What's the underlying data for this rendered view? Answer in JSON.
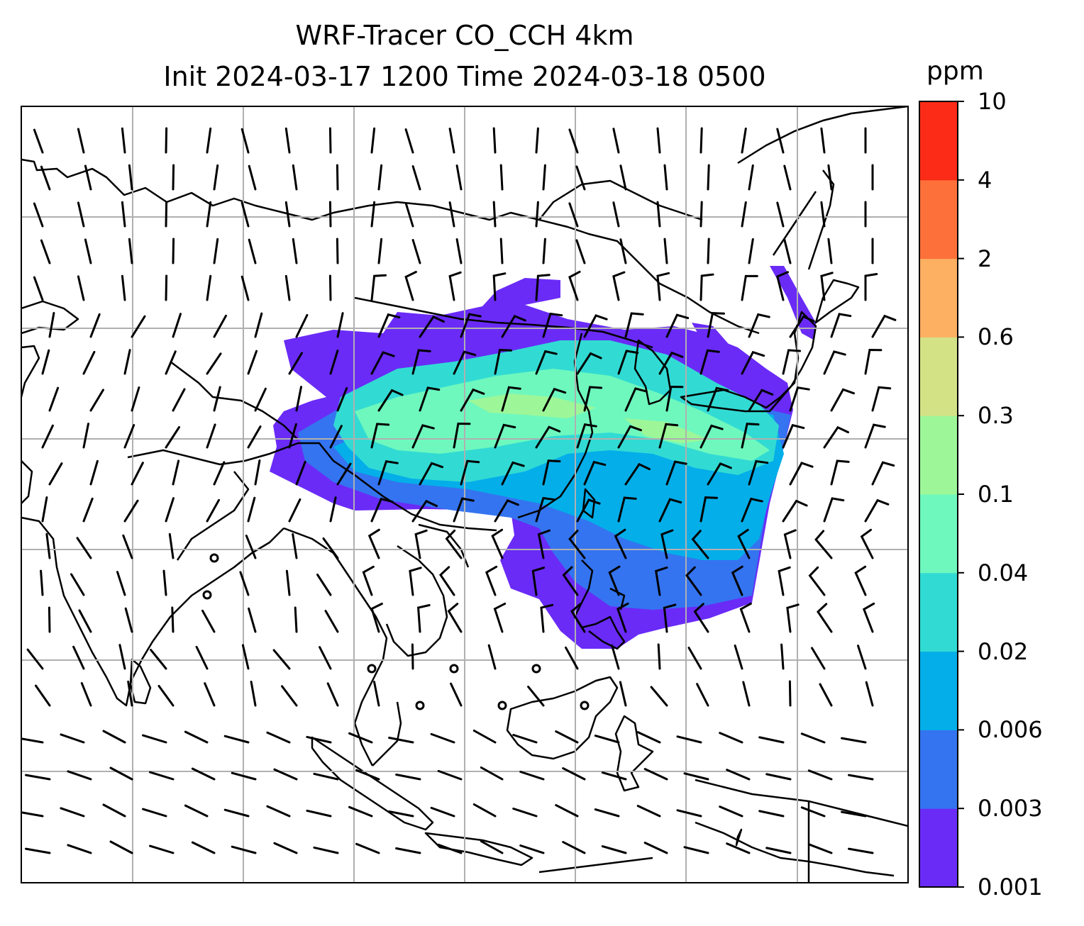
{
  "title_line1": "WRF-Tracer CO_CCH 4km",
  "title_line2": "Init 2024-03-17 1200 Time 2024-03-18 0500",
  "colorbar": {
    "units": "ppm",
    "tick_labels": [
      "0.001",
      "0.003",
      "0.006",
      "0.02",
      "0.04",
      "0.1",
      "0.3",
      "0.6",
      "2",
      "4",
      "10"
    ],
    "colors": [
      "#6a2bf7",
      "#3474f0",
      "#04aee9",
      "#31dbd3",
      "#6ef8be",
      "#9df798",
      "#d4e286",
      "#fdaf62",
      "#fd703a",
      "#fb2b18"
    ]
  },
  "map_style": {
    "coastline_color": "#000000",
    "gridline_color": "#b0b0b0",
    "wind_barb_color": "#000000",
    "background": "#ffffff"
  }
}
